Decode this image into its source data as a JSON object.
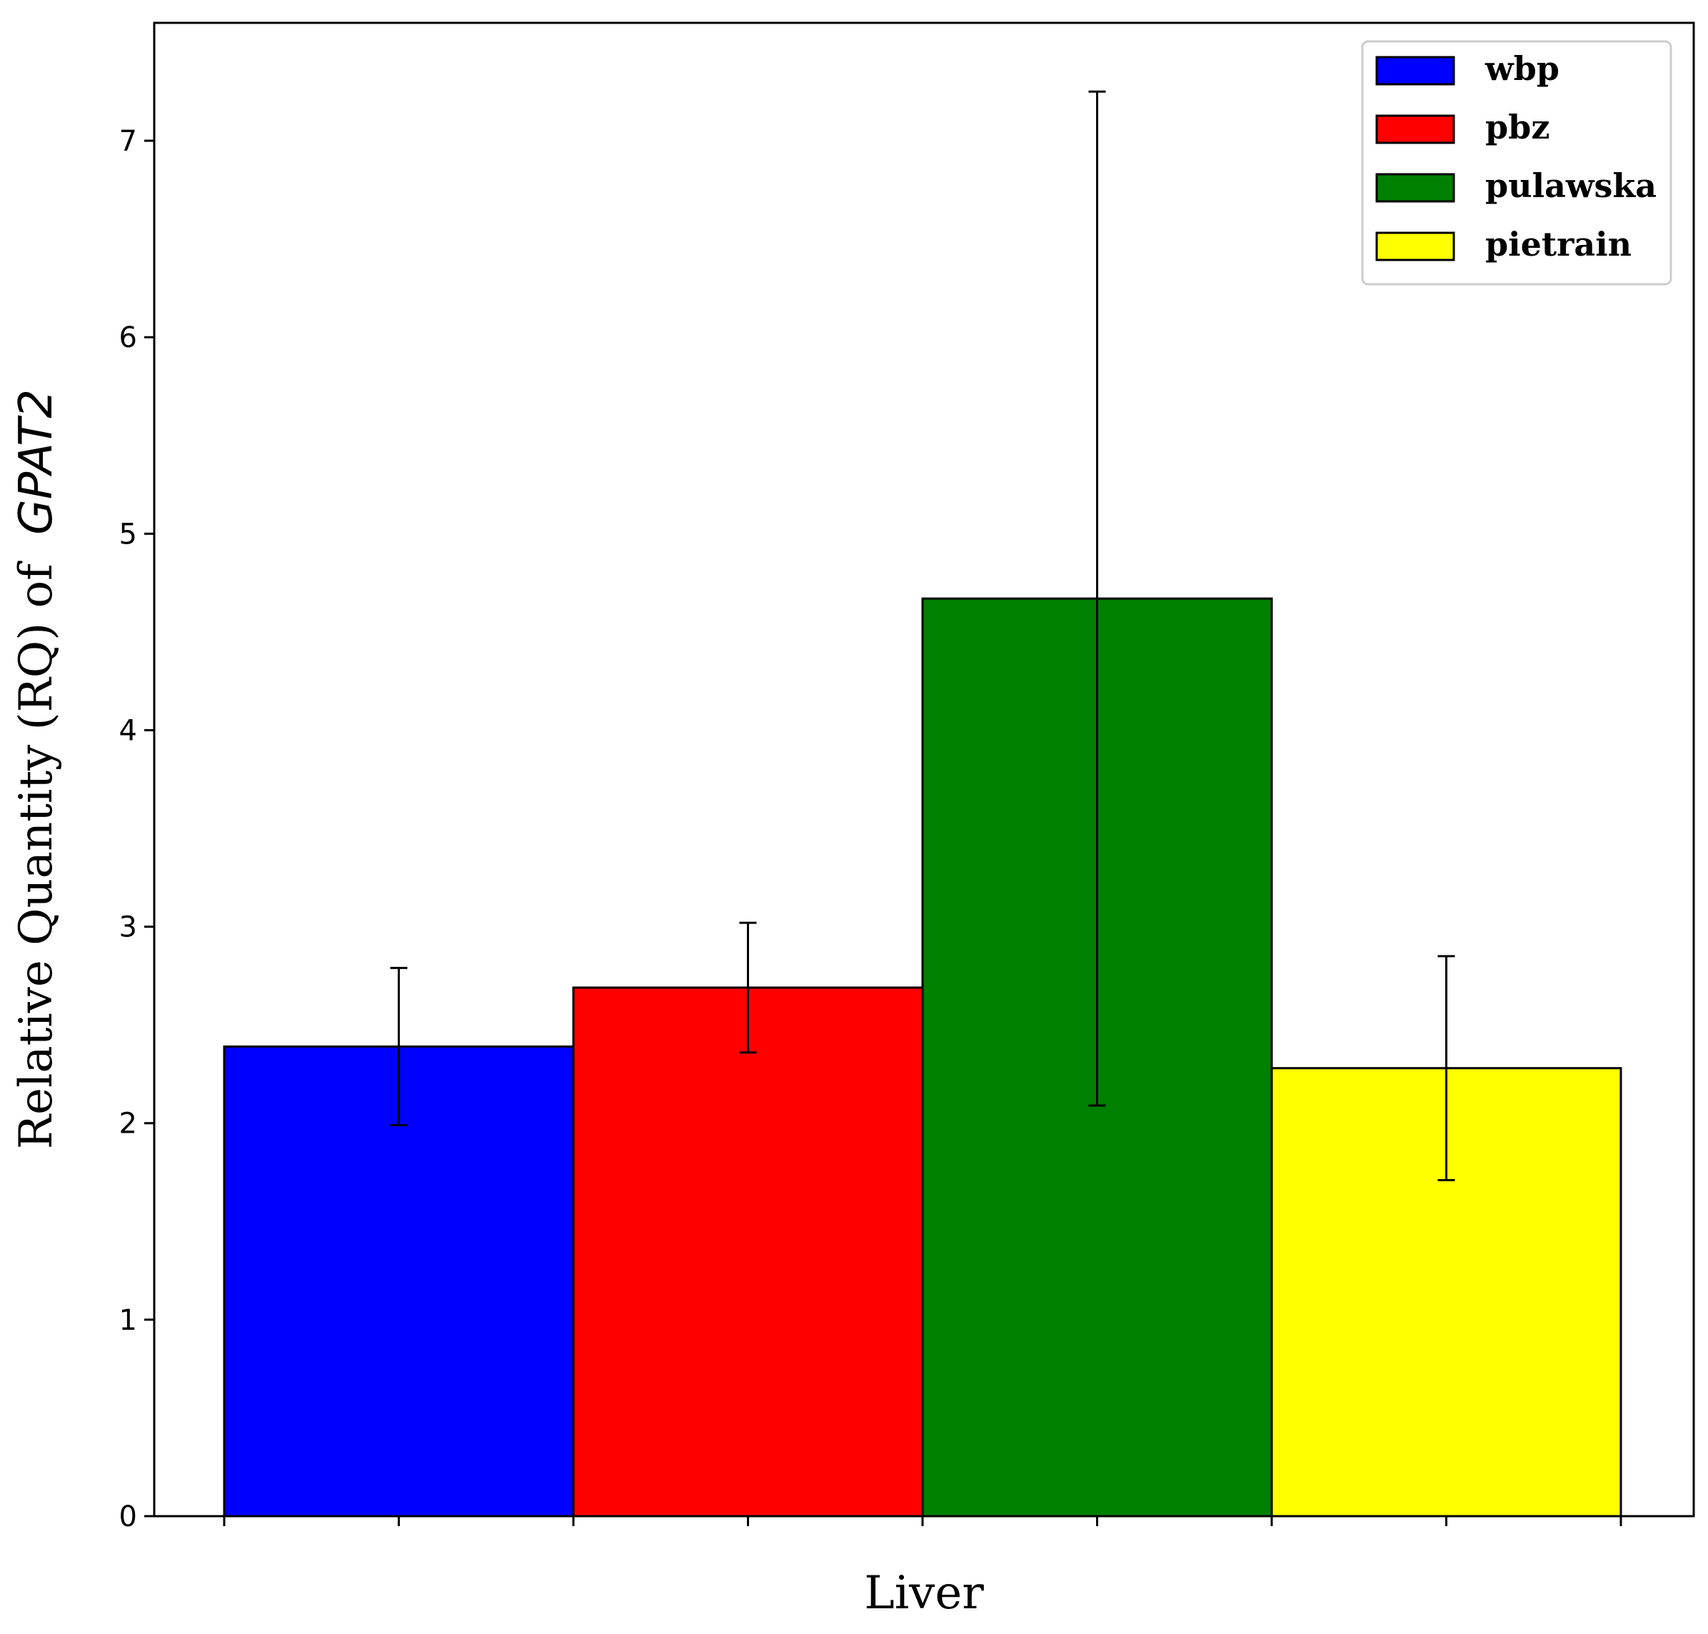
{
  "chart_data": {
    "type": "bar",
    "categories": [
      "Liver"
    ],
    "xlabel": "Liver",
    "ylabel": "Relative Quantity (RQ) of",
    "ylabel_gene": "GPAT2",
    "ylim": [
      0,
      7.6
    ],
    "yticks": [
      "0",
      "1",
      "2",
      "3",
      "4",
      "5",
      "6",
      "7"
    ],
    "grid": false,
    "legend_position": "top-right",
    "series": [
      {
        "name": "wbp",
        "color": "#0000ff",
        "value": 2.39,
        "err_low": 1.99,
        "err_high": 2.79
      },
      {
        "name": "pbz",
        "color": "#ff0000",
        "value": 2.69,
        "err_low": 2.36,
        "err_high": 3.02
      },
      {
        "name": "pulawska",
        "color": "#008000",
        "value": 4.67,
        "err_low": 2.09,
        "err_high": 7.25
      },
      {
        "name": "pietrain",
        "color": "#ffff00",
        "value": 2.28,
        "err_low": 1.71,
        "err_high": 2.85
      }
    ]
  }
}
